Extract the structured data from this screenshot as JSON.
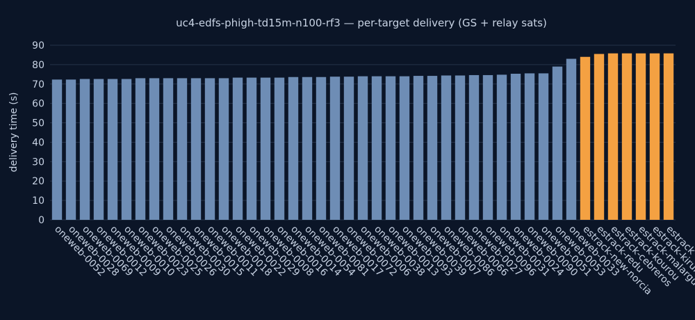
{
  "chart_data": {
    "type": "bar",
    "title": "uc4-edfs-phigh-td15m-n100-rf3 — per-target delivery (GS + relay sats)",
    "y_label": "delivery time (s)",
    "categories": [
      "oneweb-0052",
      "oneweb-0028",
      "oneweb-0069",
      "oneweb-0012",
      "oneweb-0009",
      "oneweb-0010",
      "oneweb-0023",
      "oneweb-0025",
      "oneweb-0026",
      "oneweb-0030",
      "oneweb-0015",
      "oneweb-0011",
      "oneweb-0018",
      "oneweb-0022",
      "oneweb-0029",
      "oneweb-0008",
      "oneweb-0016",
      "oneweb-0014",
      "oneweb-0054",
      "oneweb-0081",
      "oneweb-0017",
      "oneweb-0072",
      "oneweb-0006",
      "oneweb-0038",
      "oneweb-0013",
      "oneweb-0093",
      "oneweb-0039",
      "oneweb-0007",
      "oneweb-0086",
      "oneweb-0066",
      "oneweb-0027",
      "oneweb-0096",
      "oneweb-0031",
      "oneweb-0024",
      "oneweb-0090",
      "oneweb-0051",
      "oneweb-0053",
      "oneweb-0033",
      "estrack-new-norcia",
      "estrack-redu",
      "estrack-cebreros",
      "estrack-kourou",
      "estrack-malargue",
      "estrack-kiruna",
      "estrack"
    ],
    "values": [
      72.3,
      72.3,
      72.6,
      72.6,
      72.6,
      72.6,
      73,
      73,
      73,
      73,
      73,
      73,
      73,
      73.3,
      73.3,
      73.3,
      73.3,
      73.6,
      73.6,
      73.6,
      73.8,
      73.8,
      74,
      74,
      74,
      74,
      74.2,
      74.2,
      74.4,
      74.4,
      74.6,
      74.6,
      74.8,
      75.3,
      75.5,
      75.5,
      79,
      83,
      84,
      85.5,
      85.8,
      85.8,
      85.8,
      85.8,
      85.8
    ],
    "colors": [
      "#6e8db5",
      "#6e8db5",
      "#6e8db5",
      "#6e8db5",
      "#6e8db5",
      "#6e8db5",
      "#6e8db5",
      "#6e8db5",
      "#6e8db5",
      "#6e8db5",
      "#6e8db5",
      "#6e8db5",
      "#6e8db5",
      "#6e8db5",
      "#6e8db5",
      "#6e8db5",
      "#6e8db5",
      "#6e8db5",
      "#6e8db5",
      "#6e8db5",
      "#6e8db5",
      "#6e8db5",
      "#6e8db5",
      "#6e8db5",
      "#6e8db5",
      "#6e8db5",
      "#6e8db5",
      "#6e8db5",
      "#6e8db5",
      "#6e8db5",
      "#6e8db5",
      "#6e8db5",
      "#6e8db5",
      "#6e8db5",
      "#6e8db5",
      "#6e8db5",
      "#6e8db5",
      "#6e8db5",
      "#f4a142",
      "#f4a142",
      "#f4a142",
      "#f4a142",
      "#f4a142",
      "#f4a142",
      "#f4a142"
    ],
    "ylim": [
      0,
      90
    ],
    "yticks": [
      0,
      10,
      20,
      30,
      40,
      50,
      60,
      70,
      80,
      90
    ],
    "grid": true
  }
}
